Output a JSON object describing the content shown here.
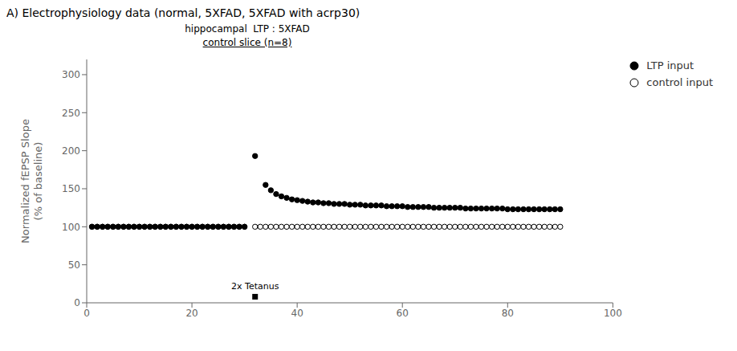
{
  "chart_data": {
    "type": "scatter",
    "title": "A) Electrophysiology data (normal, 5XFAD, 5XFAD with acrp30)",
    "subtitle": [
      "hippocampal  LTP : 5XFAD",
      "control slice (n=8)"
    ],
    "ylabel": "Normalized fEPSP Slope\n(% of baseline)",
    "xlim": [
      0,
      100
    ],
    "ylim": [
      0,
      320
    ],
    "xticks": [
      0,
      20,
      40,
      60,
      80,
      100
    ],
    "yticks": [
      0,
      50,
      100,
      150,
      200,
      250,
      300
    ],
    "grid": false,
    "legend": "upper right",
    "series": [
      {
        "name": "LTP input",
        "color": "#000000",
        "marker": "circle",
        "x": [
          1,
          2,
          3,
          4,
          5,
          6,
          7,
          8,
          9,
          10,
          11,
          12,
          13,
          14,
          15,
          16,
          17,
          18,
          19,
          20,
          21,
          22,
          23,
          24,
          25,
          26,
          27,
          28,
          29,
          30,
          32,
          34,
          35,
          36,
          37,
          38,
          39,
          40,
          41,
          42,
          43,
          44,
          45,
          46,
          47,
          48,
          49,
          50,
          51,
          52,
          53,
          54,
          55,
          56,
          57,
          58,
          59,
          60,
          61,
          62,
          63,
          64,
          65,
          66,
          67,
          68,
          69,
          70,
          71,
          72,
          73,
          74,
          75,
          76,
          77,
          78,
          79,
          80,
          81,
          82,
          83,
          84,
          85,
          86,
          87,
          88,
          89,
          90
        ],
        "values": [
          100,
          100,
          100,
          100,
          100,
          100,
          100,
          100,
          100,
          100,
          100,
          100,
          100,
          100,
          100,
          100,
          100,
          100,
          100,
          100,
          100,
          100,
          100,
          100,
          100,
          100,
          100,
          100,
          100,
          100,
          193,
          155,
          148,
          143,
          140,
          138,
          136,
          135,
          134,
          133,
          132,
          132,
          131,
          131,
          130,
          130,
          130,
          129,
          129,
          129,
          128,
          128,
          128,
          128,
          127,
          127,
          127,
          127,
          126,
          126,
          126,
          126,
          126,
          125,
          125,
          125,
          125,
          125,
          125,
          124,
          124,
          124,
          124,
          124,
          124,
          124,
          124,
          123,
          123,
          123,
          123,
          123,
          123,
          123,
          123,
          123,
          123,
          123
        ]
      },
      {
        "name": "control input",
        "color": "#000000",
        "marker": "open circle",
        "x": [
          1,
          2,
          3,
          4,
          5,
          6,
          7,
          8,
          9,
          10,
          11,
          12,
          13,
          14,
          15,
          16,
          17,
          18,
          19,
          20,
          21,
          22,
          23,
          24,
          25,
          26,
          27,
          28,
          29,
          30,
          32,
          33,
          34,
          35,
          36,
          37,
          38,
          39,
          40,
          41,
          42,
          43,
          44,
          45,
          46,
          47,
          48,
          49,
          50,
          51,
          52,
          53,
          54,
          55,
          56,
          57,
          58,
          59,
          60,
          61,
          62,
          63,
          64,
          65,
          66,
          67,
          68,
          69,
          70,
          71,
          72,
          73,
          74,
          75,
          76,
          77,
          78,
          79,
          80,
          81,
          82,
          83,
          84,
          85,
          86,
          87,
          88,
          89,
          90
        ],
        "values": [
          100,
          100,
          100,
          100,
          100,
          100,
          100,
          100,
          100,
          100,
          100,
          100,
          100,
          100,
          100,
          100,
          100,
          100,
          100,
          100,
          100,
          100,
          100,
          100,
          100,
          100,
          100,
          100,
          100,
          100,
          100,
          100,
          100,
          100,
          100,
          100,
          100,
          100,
          100,
          100,
          100,
          100,
          100,
          100,
          100,
          100,
          100,
          100,
          100,
          100,
          100,
          100,
          100,
          100,
          100,
          100,
          100,
          100,
          100,
          100,
          100,
          100,
          100,
          100,
          100,
          100,
          100,
          100,
          100,
          100,
          100,
          100,
          100,
          100,
          100,
          100,
          100,
          100,
          100,
          100,
          100,
          100,
          100,
          100,
          100,
          100,
          100,
          100,
          100
        ]
      }
    ],
    "annotations": [
      {
        "text": "2x Tetanus",
        "x": 32,
        "y": 8,
        "marker": "square",
        "color": "#000000"
      }
    ]
  }
}
